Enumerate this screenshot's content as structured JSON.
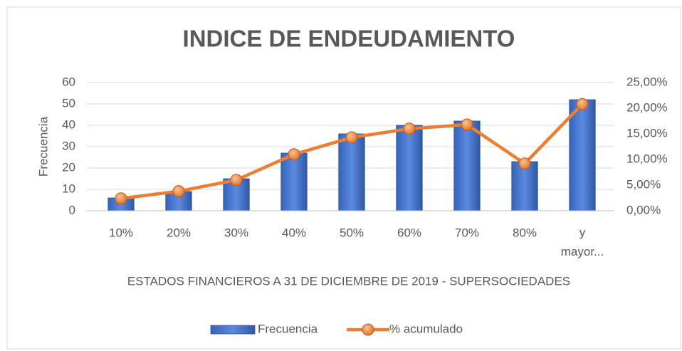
{
  "chart_data": {
    "type": "bar_line",
    "title": "INDICE DE ENDEUDAMIENTO",
    "x_label": "ESTADOS FINANCIEROS A 31 DE DICIEMBRE DE 2019 - SUPERSOCIEDADES",
    "y_label": "Frecuencia",
    "categories": [
      "10%",
      "20%",
      "30%",
      "40%",
      "50%",
      "60%",
      "70%",
      "80%",
      "y mayor..."
    ],
    "series": [
      {
        "name": "Frecuencia",
        "color": "#4472c4",
        "kind": "bar",
        "values": [
          6,
          9,
          15,
          27,
          36,
          40,
          42,
          23,
          52
        ]
      },
      {
        "name": "% acumulado",
        "color": "#ed7d31",
        "kind": "line",
        "axis": "y2",
        "values": [
          2.4,
          3.8,
          6.0,
          11.0,
          14.3,
          16.0,
          16.8,
          9.2,
          20.8
        ]
      }
    ],
    "ylim": [
      0,
      60
    ],
    "yticks": [
      0,
      10,
      20,
      30,
      40,
      50,
      60
    ],
    "y2lim": [
      0,
      25
    ],
    "y2ticks": [
      {
        "value": 0,
        "label": "0,00%"
      },
      {
        "value": 5,
        "label": "5,00%"
      },
      {
        "value": 10,
        "label": "10,00%"
      },
      {
        "value": 15,
        "label": "15,00%"
      },
      {
        "value": 20,
        "label": "20,00%"
      },
      {
        "value": 25,
        "label": "25,00%"
      }
    ],
    "grid": true,
    "legend": "bottom"
  }
}
